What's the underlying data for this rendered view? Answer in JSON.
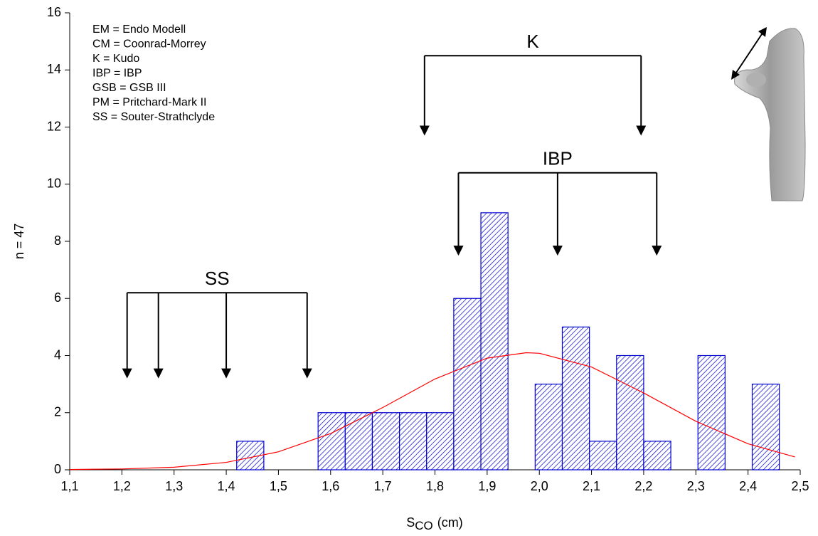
{
  "chart_data": {
    "type": "histogram",
    "y_label": "n = 47",
    "x_label_parts": [
      "S",
      "CO",
      "(cm)"
    ],
    "legend_text": [
      "EM = Endo Modell",
      "CM = Coonrad-Morrey",
      "K  = Kudo",
      "IBP = IBP",
      "GSB = GSB III",
      "PM  = Pritchard-Mark II",
      "SS  = Souter-Strathclyde"
    ],
    "bins": [
      1.42,
      1.472,
      1.524,
      1.576,
      1.628,
      1.68,
      1.732,
      1.784,
      1.836,
      1.888,
      1.94,
      1.992,
      2.044,
      2.096,
      2.148,
      2.2,
      2.252,
      2.304,
      2.356,
      2.408,
      2.46
    ],
    "values": [
      1,
      0,
      0,
      2,
      2,
      2,
      2,
      2,
      6,
      9,
      0,
      3,
      5,
      1,
      4,
      1,
      0,
      4,
      0,
      3
    ],
    "color": "#0000cc",
    "curve": {
      "color": "#ff0000",
      "x": [
        1.1,
        1.2,
        1.3,
        1.4,
        1.5,
        1.6,
        1.7,
        1.8,
        1.9,
        1.975,
        2.0,
        2.1,
        2.2,
        2.3,
        2.4,
        2.49
      ],
      "values": [
        0.01,
        0.03,
        0.09,
        0.26,
        0.63,
        1.27,
        2.18,
        3.18,
        3.91,
        4.1,
        4.08,
        3.6,
        2.69,
        1.7,
        0.91,
        0.45
      ]
    },
    "annotations": [
      {
        "label": "SS",
        "y": 6.2,
        "tip": 3.2,
        "arrows": [
          1.21,
          1.27,
          1.4,
          1.555
        ]
      },
      {
        "label": "K",
        "y": 14.5,
        "tip": 11.7,
        "arrows": [
          1.78,
          2.195
        ]
      },
      {
        "label": "IBP",
        "y": 10.4,
        "tip": 7.5,
        "arrows": [
          1.845,
          2.035,
          2.225
        ]
      }
    ],
    "xlim": [
      1.1,
      2.5
    ],
    "xticks": [
      {
        "value": 1.1,
        "label": "1,1"
      },
      {
        "value": 1.2,
        "label": "1,2"
      },
      {
        "value": 1.3,
        "label": "1,3"
      },
      {
        "value": 1.4,
        "label": "1,4"
      },
      {
        "value": 1.5,
        "label": "1,5"
      },
      {
        "value": 1.6,
        "label": "1,6"
      },
      {
        "value": 1.7,
        "label": "1,7"
      },
      {
        "value": 1.8,
        "label": "1,8"
      },
      {
        "value": 1.9,
        "label": "1,9"
      },
      {
        "value": 2.0,
        "label": "2,0"
      },
      {
        "value": 2.1,
        "label": "2,1"
      },
      {
        "value": 2.2,
        "label": "2,2"
      },
      {
        "value": 2.3,
        "label": "2,3"
      },
      {
        "value": 2.4,
        "label": "2,4"
      },
      {
        "value": 2.5,
        "label": "2,5"
      }
    ],
    "ylim": [
      0,
      16
    ],
    "yticks": [
      0,
      2,
      4,
      6,
      8,
      10,
      12,
      14,
      16
    ]
  }
}
